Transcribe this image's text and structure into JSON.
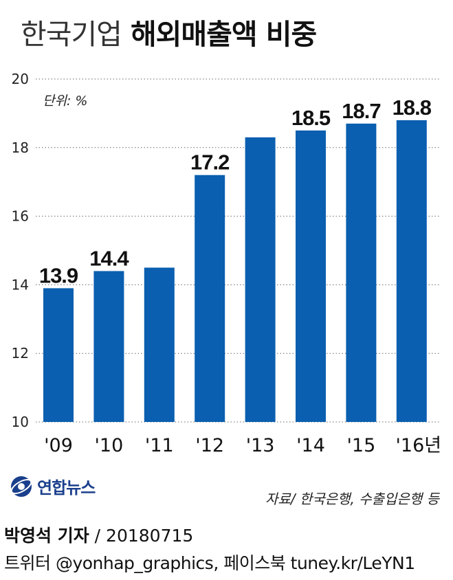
{
  "header": {
    "title_light": "한국기업",
    "title_bold": "해외매출액 비중",
    "unit": "단위: %"
  },
  "chart_data": {
    "type": "bar",
    "categories": [
      "'09",
      "'10",
      "'11",
      "'12",
      "'13",
      "'14",
      "'15",
      "'16년"
    ],
    "values": [
      13.9,
      14.4,
      14.5,
      17.2,
      18.3,
      18.5,
      18.7,
      18.8
    ],
    "data_labels": [
      "13.9",
      "14.4",
      "",
      "17.2",
      "",
      "18.5",
      "18.7",
      "18.8"
    ],
    "y_ticks": [
      "10",
      "12",
      "14",
      "16",
      "18",
      "20"
    ],
    "ylim": [
      10,
      20
    ],
    "grid": true,
    "bar_color": "#0a5fb0"
  },
  "brand": {
    "logo_text": "연합뉴스",
    "logo_color": "#1a3f8c"
  },
  "source": "자료/ 한국은행, 수출입은행 등",
  "footer": {
    "reporter": "박영석 기자",
    "date": " / 20180715",
    "social": "트위터 @yonhap_graphics, 페이스북 tuney.kr/LeYN1"
  }
}
